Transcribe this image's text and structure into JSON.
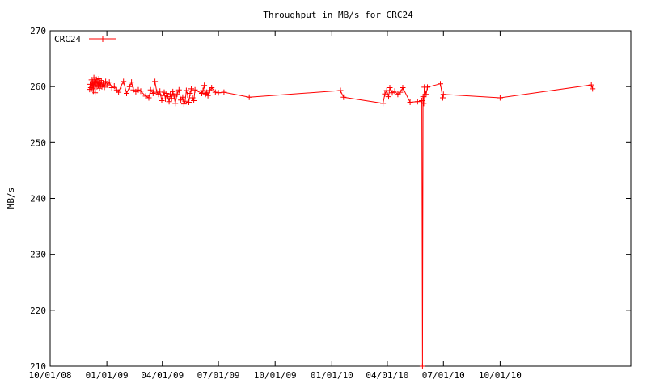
{
  "chart_data": {
    "type": "line",
    "title": "Throughput in MB/s for CRC24",
    "xlabel": "",
    "ylabel": "MB/s",
    "ylim": [
      210,
      270
    ],
    "xlim": [
      "2008-10-01",
      "2011-05-01"
    ],
    "y_ticks": [
      "210",
      "220",
      "230",
      "240",
      "250",
      "260",
      "270"
    ],
    "x_ticks": [
      {
        "date": "2008-10-01",
        "label": "10/01/08"
      },
      {
        "date": "2009-01-01",
        "label": "01/01/09"
      },
      {
        "date": "2009-04-01",
        "label": "04/01/09"
      },
      {
        "date": "2009-07-01",
        "label": "07/01/09"
      },
      {
        "date": "2009-10-01",
        "label": "10/01/09"
      },
      {
        "date": "2010-01-01",
        "label": "01/01/10"
      },
      {
        "date": "2010-04-01",
        "label": "04/01/10"
      },
      {
        "date": "2010-07-01",
        "label": "07/01/10"
      },
      {
        "date": "2010-10-01",
        "label": "10/01/10"
      }
    ],
    "grid": false,
    "legend": "top-left",
    "series": [
      {
        "name": "CRC24",
        "color": "#ff0000",
        "marker": "plus",
        "points": [
          [
            "2008-12-04",
            259.5
          ],
          [
            "2008-12-05",
            260.4
          ],
          [
            "2008-12-06",
            259.8
          ],
          [
            "2008-12-07",
            261.2
          ],
          [
            "2008-12-08",
            259.6
          ],
          [
            "2008-12-09",
            260.9
          ],
          [
            "2008-12-10",
            259.2
          ],
          [
            "2008-12-11",
            261.6
          ],
          [
            "2008-12-12",
            260.1
          ],
          [
            "2008-12-13",
            258.9
          ],
          [
            "2008-12-14",
            260.7
          ],
          [
            "2008-12-15",
            261.3
          ],
          [
            "2008-12-16",
            260.0
          ],
          [
            "2008-12-17",
            260.9
          ],
          [
            "2008-12-18",
            260.2
          ],
          [
            "2008-12-19",
            261.4
          ],
          [
            "2008-12-20",
            259.7
          ],
          [
            "2008-12-21",
            260.8
          ],
          [
            "2008-12-22",
            260.3
          ],
          [
            "2008-12-23",
            261.1
          ],
          [
            "2008-12-24",
            260.0
          ],
          [
            "2008-12-26",
            260.6
          ],
          [
            "2008-12-28",
            259.9
          ],
          [
            "2008-12-30",
            260.9
          ],
          [
            "2009-01-02",
            260.3
          ],
          [
            "2009-01-05",
            260.8
          ],
          [
            "2009-01-09",
            259.8
          ],
          [
            "2009-01-13",
            260.1
          ],
          [
            "2009-01-17",
            259.4
          ],
          [
            "2009-01-20",
            259.0
          ],
          [
            "2009-01-24",
            260.1
          ],
          [
            "2009-01-28",
            260.9
          ],
          [
            "2009-02-02",
            258.8
          ],
          [
            "2009-02-07",
            260.0
          ],
          [
            "2009-02-10",
            260.8
          ],
          [
            "2009-02-13",
            259.4
          ],
          [
            "2009-02-17",
            259.1
          ],
          [
            "2009-02-21",
            259.4
          ],
          [
            "2009-02-25",
            259.2
          ],
          [
            "2009-03-05",
            258.3
          ],
          [
            "2009-03-10",
            258.0
          ],
          [
            "2009-03-13",
            259.4
          ],
          [
            "2009-03-17",
            258.8
          ],
          [
            "2009-03-20",
            260.9
          ],
          [
            "2009-03-23",
            259.0
          ],
          [
            "2009-03-26",
            258.6
          ],
          [
            "2009-03-28",
            259.2
          ],
          [
            "2009-03-31",
            257.5
          ],
          [
            "2009-04-02",
            258.4
          ],
          [
            "2009-04-04",
            259.0
          ],
          [
            "2009-04-06",
            257.8
          ],
          [
            "2009-04-08",
            258.8
          ],
          [
            "2009-04-10",
            258.2
          ],
          [
            "2009-04-12",
            257.3
          ],
          [
            "2009-04-14",
            258.6
          ],
          [
            "2009-04-16",
            257.9
          ],
          [
            "2009-04-18",
            259.1
          ],
          [
            "2009-04-20",
            258.3
          ],
          [
            "2009-04-22",
            257.0
          ],
          [
            "2009-04-25",
            258.7
          ],
          [
            "2009-04-28",
            259.4
          ],
          [
            "2009-05-01",
            257.6
          ],
          [
            "2009-05-04",
            258.1
          ],
          [
            "2009-05-06",
            256.9
          ],
          [
            "2009-05-08",
            257.4
          ],
          [
            "2009-05-10",
            259.3
          ],
          [
            "2009-05-12",
            258.5
          ],
          [
            "2009-05-14",
            257.2
          ],
          [
            "2009-05-16",
            258.8
          ],
          [
            "2009-05-18",
            259.6
          ],
          [
            "2009-05-20",
            258.0
          ],
          [
            "2009-05-22",
            257.5
          ],
          [
            "2009-05-24",
            259.4
          ],
          [
            "2009-06-04",
            258.8
          ],
          [
            "2009-06-06",
            259.3
          ],
          [
            "2009-06-08",
            260.2
          ],
          [
            "2009-06-10",
            258.6
          ],
          [
            "2009-06-12",
            259.0
          ],
          [
            "2009-06-14",
            258.4
          ],
          [
            "2009-06-17",
            259.3
          ],
          [
            "2009-06-20",
            259.8
          ],
          [
            "2009-06-26",
            259.0
          ],
          [
            "2009-07-01",
            258.9
          ],
          [
            "2009-07-10",
            259.0
          ],
          [
            "2009-08-20",
            258.1
          ],
          [
            "2010-01-15",
            259.3
          ],
          [
            "2010-01-20",
            258.1
          ],
          [
            "2010-03-25",
            257.0
          ],
          [
            "2010-03-28",
            258.7
          ],
          [
            "2010-03-31",
            259.3
          ],
          [
            "2010-04-03",
            258.2
          ],
          [
            "2010-04-05",
            259.8
          ],
          [
            "2010-04-09",
            258.9
          ],
          [
            "2010-04-13",
            259.2
          ],
          [
            "2010-04-18",
            258.6
          ],
          [
            "2010-04-22",
            259.0
          ],
          [
            "2010-04-26",
            259.8
          ],
          [
            "2010-05-08",
            257.2
          ],
          [
            "2010-05-20",
            257.3
          ],
          [
            "2010-05-27",
            257.5
          ],
          [
            "2010-05-28",
            210.0
          ],
          [
            "2010-05-29",
            258.2
          ],
          [
            "2010-05-30",
            257.0
          ],
          [
            "2010-05-31",
            259.9
          ],
          [
            "2010-06-03",
            258.6
          ],
          [
            "2010-06-05",
            259.9
          ],
          [
            "2010-06-26",
            260.5
          ],
          [
            "2010-06-30",
            258.0
          ],
          [
            "2010-07-01",
            258.6
          ],
          [
            "2010-10-01",
            258.0
          ],
          [
            "2011-02-26",
            260.3
          ],
          [
            "2011-02-28",
            259.6
          ]
        ]
      }
    ]
  }
}
